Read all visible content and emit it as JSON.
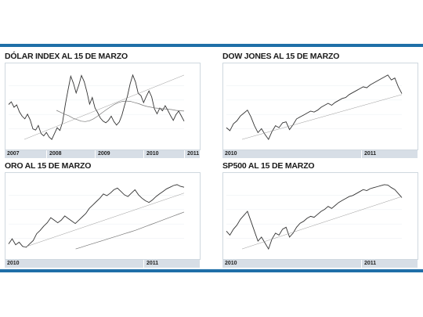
{
  "colors": {
    "accent": "#1f6fa8",
    "price_line": "#333333",
    "average_line": "#777777",
    "trend_line": "#999999"
  },
  "chart_data": [
    {
      "type": "line",
      "title": "DÓLAR INDEX AL 15 DE MARZO",
      "year_labels": [
        "2007",
        "2008",
        "2009",
        "2010",
        "2011"
      ],
      "series": [
        {
          "values": [
            80.5,
            81.2,
            79.8,
            80.4,
            78.6,
            77.5,
            76.8,
            78.0,
            76.5,
            74.2,
            73.9,
            75.1,
            73.0,
            72.4,
            73.3,
            72.1,
            71.5,
            73.0,
            74.5,
            73.8,
            76.0,
            80.5,
            84.2,
            87.8,
            86.0,
            83.5,
            85.5,
            88.0,
            86.4,
            83.8,
            80.6,
            82.3,
            79.6,
            78.4,
            77.0,
            76.2,
            75.8,
            76.4,
            77.5,
            76.1,
            75.2,
            76.0,
            77.8,
            80.4,
            82.6,
            85.8,
            88.1,
            86.3,
            83.4,
            82.8,
            81.0,
            82.6,
            84.0,
            82.5,
            79.4,
            78.1,
            79.6,
            78.9,
            80.2,
            79.0,
            77.6,
            76.4,
            77.9,
            78.8,
            77.5,
            76.2
          ]
        },
        {
          "values": [
            79.0,
            78.5,
            78.0,
            77.6,
            77.0,
            76.6,
            76.2,
            76.1,
            76.3,
            76.8,
            77.5,
            78.3,
            79.1,
            79.8,
            80.5,
            81.0,
            81.3,
            81.4,
            81.3,
            81.0,
            80.7,
            80.3,
            80.0,
            79.8,
            79.6,
            79.5,
            79.4,
            79.3,
            79.2,
            79.0,
            78.9,
            78.8
          ]
        }
      ]
    },
    {
      "type": "line",
      "title": "DOW JONES AL 15 DE MARZO",
      "year_labels": [
        "2010",
        "2011"
      ],
      "series": [
        {
          "values": [
            10300,
            10150,
            10500,
            10650,
            10900,
            11050,
            11200,
            10850,
            10400,
            10050,
            10250,
            9950,
            9700,
            10100,
            10400,
            10300,
            10550,
            10600,
            10200,
            10450,
            10750,
            10850,
            10950,
            11050,
            11150,
            11100,
            11200,
            11350,
            11450,
            11550,
            11450,
            11600,
            11700,
            11800,
            11850,
            12000,
            12100,
            12200,
            12300,
            12400,
            12350,
            12500,
            12600,
            12700,
            12800,
            12900,
            13000,
            12750,
            12850,
            12400,
            12050
          ]
        }
      ]
    },
    {
      "type": "line",
      "title": "ORO AL 15 DE MARZO",
      "year_labels": [
        "2010",
        "2011"
      ],
      "series": [
        {
          "values": [
            1090,
            1120,
            1085,
            1100,
            1075,
            1070,
            1090,
            1110,
            1150,
            1170,
            1195,
            1215,
            1245,
            1230,
            1215,
            1230,
            1255,
            1240,
            1225,
            1210,
            1230,
            1250,
            1270,
            1300,
            1320,
            1340,
            1360,
            1385,
            1375,
            1390,
            1410,
            1420,
            1400,
            1380,
            1370,
            1390,
            1410,
            1380,
            1360,
            1345,
            1335,
            1350,
            1370,
            1385,
            1400,
            1415,
            1425,
            1435,
            1440,
            1430,
            1425
          ]
        },
        {
          "values": [
            1060,
            1070,
            1080,
            1090,
            1100,
            1110,
            1120,
            1130,
            1140,
            1150,
            1160,
            1170,
            1182,
            1194,
            1206,
            1218,
            1230,
            1242,
            1254,
            1266,
            1278
          ]
        }
      ]
    },
    {
      "type": "line",
      "title": "SP500 AL 15 DE MARZO",
      "year_labels": [
        "2010",
        "2011"
      ],
      "series": [
        {
          "values": [
            1110,
            1090,
            1120,
            1140,
            1170,
            1190,
            1210,
            1160,
            1110,
            1060,
            1080,
            1050,
            1020,
            1070,
            1100,
            1090,
            1120,
            1130,
            1080,
            1100,
            1130,
            1150,
            1160,
            1175,
            1185,
            1180,
            1195,
            1210,
            1220,
            1235,
            1225,
            1240,
            1255,
            1265,
            1275,
            1285,
            1290,
            1300,
            1310,
            1320,
            1315,
            1325,
            1330,
            1335,
            1340,
            1345,
            1343,
            1330,
            1320,
            1300,
            1280
          ]
        }
      ]
    }
  ]
}
